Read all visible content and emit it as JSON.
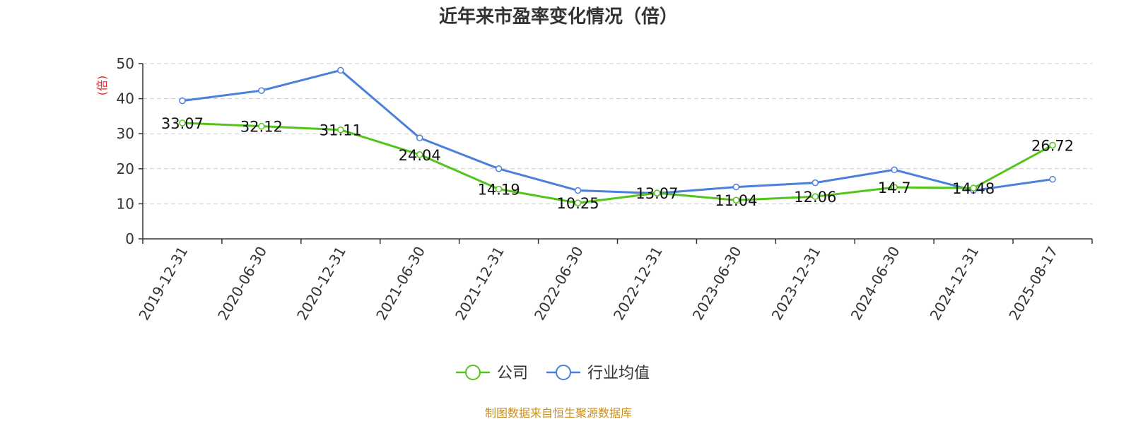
{
  "chart_data": {
    "type": "line",
    "title": "近年来市盈率变化情况（倍）",
    "ylabel": "(倍)",
    "ylim": [
      0,
      50
    ],
    "yticks": [
      0,
      10,
      20,
      30,
      40,
      50
    ],
    "grid": true,
    "legend_position": "bottom",
    "categories": [
      "2019-12-31",
      "2020-06-30",
      "2020-12-31",
      "2021-06-30",
      "2021-12-31",
      "2022-06-30",
      "2022-12-31",
      "2023-06-30",
      "2023-12-31",
      "2024-06-30",
      "2024-12-31",
      "2025-08-17"
    ],
    "series": [
      {
        "name": "公司",
        "color": "#52c41a",
        "values": [
          33.07,
          32.12,
          31.11,
          24.04,
          14.19,
          10.25,
          13.07,
          11.04,
          12.06,
          14.7,
          14.48,
          26.72
        ],
        "labels": [
          "33.07",
          "32.12",
          "31.11",
          "24.04",
          "14.19",
          "10.25",
          "13.07",
          "11.04",
          "12.06",
          "14.7",
          "14.48",
          "26.72"
        ],
        "show_labels": true
      },
      {
        "name": "行业均值",
        "color": "#4a7fdc",
        "values": [
          39.4,
          42.3,
          48.1,
          28.8,
          20.0,
          13.8,
          13.0,
          14.8,
          16.0,
          19.7,
          13.8,
          17.0
        ],
        "show_labels": false
      }
    ],
    "source": "制图数据来自恒生聚源数据库"
  },
  "colors": {
    "title": "#333333",
    "ylabel": "#e8262a",
    "axis": "#333333",
    "grid": "#cccccc",
    "source": "#c8901e"
  }
}
